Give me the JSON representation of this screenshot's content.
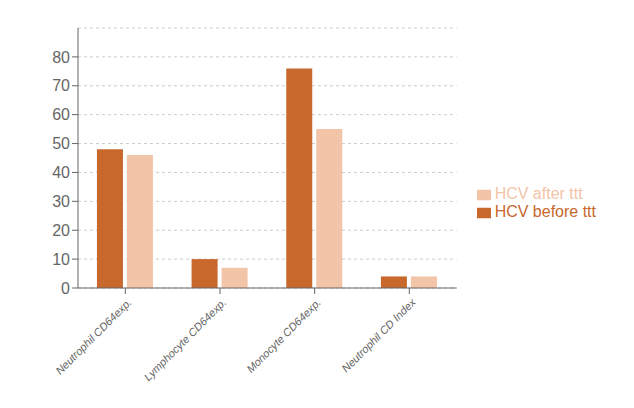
{
  "chart_data": {
    "type": "bar",
    "categories": [
      "Neutrophil CD64exp.",
      "Lymphocyte CD64exp.",
      "Monocyte CD64exp.",
      "Neutrophil CD Index"
    ],
    "series": [
      {
        "name": "HCV before ttt",
        "color": "#C8682C",
        "values": [
          48,
          10,
          76,
          4
        ]
      },
      {
        "name": "HCV after ttt",
        "color": "#F2C4A8",
        "values": [
          46,
          7,
          55,
          4
        ]
      }
    ],
    "ylim": [
      0,
      90
    ],
    "yticks": [
      0,
      10,
      20,
      30,
      40,
      50,
      60,
      70,
      80
    ],
    "grid": true,
    "legend": "right"
  }
}
